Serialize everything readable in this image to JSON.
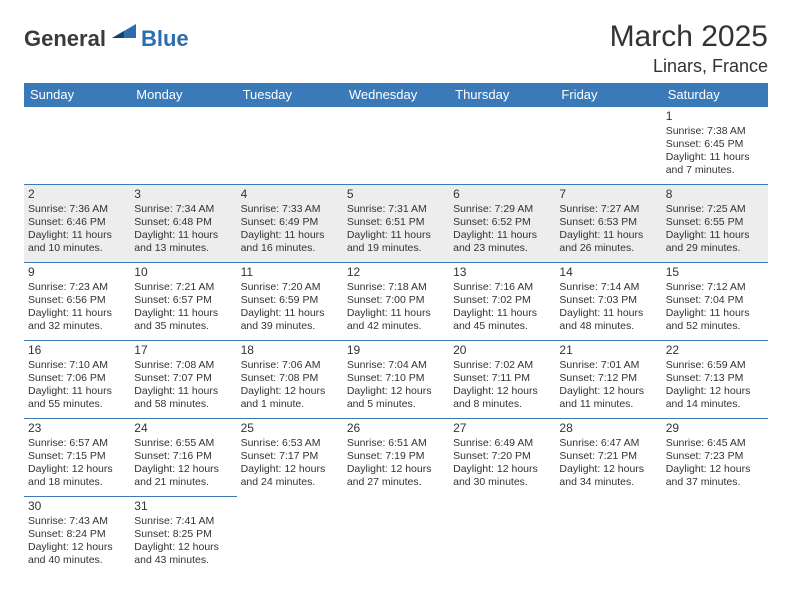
{
  "logo": {
    "dark": "General",
    "blue": "Blue"
  },
  "title": "March 2025",
  "location": "Linars, France",
  "header_bg": "#3a7ab8",
  "weekdays": [
    "Sunday",
    "Monday",
    "Tuesday",
    "Wednesday",
    "Thursday",
    "Friday",
    "Saturday"
  ],
  "weeks": [
    [
      null,
      null,
      null,
      null,
      null,
      null,
      {
        "d": "1",
        "sr": "7:38 AM",
        "ss": "6:45 PM",
        "dl": "11 hours and 7 minutes."
      }
    ],
    [
      {
        "d": "2",
        "sr": "7:36 AM",
        "ss": "6:46 PM",
        "dl": "11 hours and 10 minutes."
      },
      {
        "d": "3",
        "sr": "7:34 AM",
        "ss": "6:48 PM",
        "dl": "11 hours and 13 minutes."
      },
      {
        "d": "4",
        "sr": "7:33 AM",
        "ss": "6:49 PM",
        "dl": "11 hours and 16 minutes."
      },
      {
        "d": "5",
        "sr": "7:31 AM",
        "ss": "6:51 PM",
        "dl": "11 hours and 19 minutes."
      },
      {
        "d": "6",
        "sr": "7:29 AM",
        "ss": "6:52 PM",
        "dl": "11 hours and 23 minutes."
      },
      {
        "d": "7",
        "sr": "7:27 AM",
        "ss": "6:53 PM",
        "dl": "11 hours and 26 minutes."
      },
      {
        "d": "8",
        "sr": "7:25 AM",
        "ss": "6:55 PM",
        "dl": "11 hours and 29 minutes."
      }
    ],
    [
      {
        "d": "9",
        "sr": "7:23 AM",
        "ss": "6:56 PM",
        "dl": "11 hours and 32 minutes."
      },
      {
        "d": "10",
        "sr": "7:21 AM",
        "ss": "6:57 PM",
        "dl": "11 hours and 35 minutes."
      },
      {
        "d": "11",
        "sr": "7:20 AM",
        "ss": "6:59 PM",
        "dl": "11 hours and 39 minutes."
      },
      {
        "d": "12",
        "sr": "7:18 AM",
        "ss": "7:00 PM",
        "dl": "11 hours and 42 minutes."
      },
      {
        "d": "13",
        "sr": "7:16 AM",
        "ss": "7:02 PM",
        "dl": "11 hours and 45 minutes."
      },
      {
        "d": "14",
        "sr": "7:14 AM",
        "ss": "7:03 PM",
        "dl": "11 hours and 48 minutes."
      },
      {
        "d": "15",
        "sr": "7:12 AM",
        "ss": "7:04 PM",
        "dl": "11 hours and 52 minutes."
      }
    ],
    [
      {
        "d": "16",
        "sr": "7:10 AM",
        "ss": "7:06 PM",
        "dl": "11 hours and 55 minutes."
      },
      {
        "d": "17",
        "sr": "7:08 AM",
        "ss": "7:07 PM",
        "dl": "11 hours and 58 minutes."
      },
      {
        "d": "18",
        "sr": "7:06 AM",
        "ss": "7:08 PM",
        "dl": "12 hours and 1 minute."
      },
      {
        "d": "19",
        "sr": "7:04 AM",
        "ss": "7:10 PM",
        "dl": "12 hours and 5 minutes."
      },
      {
        "d": "20",
        "sr": "7:02 AM",
        "ss": "7:11 PM",
        "dl": "12 hours and 8 minutes."
      },
      {
        "d": "21",
        "sr": "7:01 AM",
        "ss": "7:12 PM",
        "dl": "12 hours and 11 minutes."
      },
      {
        "d": "22",
        "sr": "6:59 AM",
        "ss": "7:13 PM",
        "dl": "12 hours and 14 minutes."
      }
    ],
    [
      {
        "d": "23",
        "sr": "6:57 AM",
        "ss": "7:15 PM",
        "dl": "12 hours and 18 minutes."
      },
      {
        "d": "24",
        "sr": "6:55 AM",
        "ss": "7:16 PM",
        "dl": "12 hours and 21 minutes."
      },
      {
        "d": "25",
        "sr": "6:53 AM",
        "ss": "7:17 PM",
        "dl": "12 hours and 24 minutes."
      },
      {
        "d": "26",
        "sr": "6:51 AM",
        "ss": "7:19 PM",
        "dl": "12 hours and 27 minutes."
      },
      {
        "d": "27",
        "sr": "6:49 AM",
        "ss": "7:20 PM",
        "dl": "12 hours and 30 minutes."
      },
      {
        "d": "28",
        "sr": "6:47 AM",
        "ss": "7:21 PM",
        "dl": "12 hours and 34 minutes."
      },
      {
        "d": "29",
        "sr": "6:45 AM",
        "ss": "7:23 PM",
        "dl": "12 hours and 37 minutes."
      }
    ],
    [
      {
        "d": "30",
        "sr": "7:43 AM",
        "ss": "8:24 PM",
        "dl": "12 hours and 40 minutes."
      },
      {
        "d": "31",
        "sr": "7:41 AM",
        "ss": "8:25 PM",
        "dl": "12 hours and 43 minutes."
      },
      null,
      null,
      null,
      null,
      null
    ]
  ]
}
